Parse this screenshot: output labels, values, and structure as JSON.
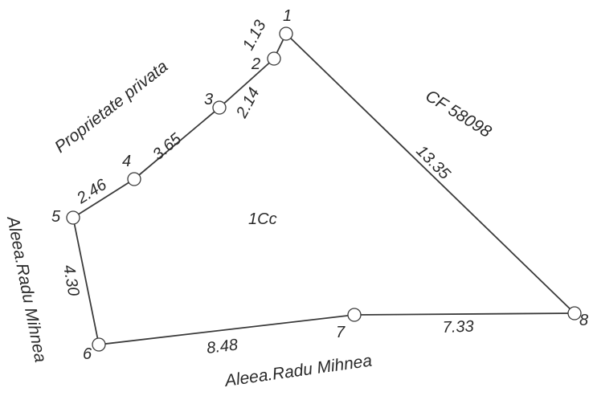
{
  "parcel": {
    "label": "1Cc",
    "points": [
      {
        "id": "1",
        "label": "1"
      },
      {
        "id": "2",
        "label": "2"
      },
      {
        "id": "3",
        "label": "3"
      },
      {
        "id": "4",
        "label": "4"
      },
      {
        "id": "5",
        "label": "5"
      },
      {
        "id": "6",
        "label": "6"
      },
      {
        "id": "7",
        "label": "7"
      },
      {
        "id": "8",
        "label": "8"
      }
    ],
    "segments": [
      {
        "from": "1",
        "to": "2",
        "length": "1.13"
      },
      {
        "from": "2",
        "to": "3",
        "length": "2.14"
      },
      {
        "from": "3",
        "to": "4",
        "length": "3.65"
      },
      {
        "from": "4",
        "to": "5",
        "length": "2.46"
      },
      {
        "from": "5",
        "to": "6",
        "length": "4.30"
      },
      {
        "from": "6",
        "to": "7",
        "length": "8.48"
      },
      {
        "from": "7",
        "to": "8",
        "length": "7.33"
      },
      {
        "from": "8",
        "to": "1",
        "length": "13.35"
      }
    ]
  },
  "neighbors": {
    "north": "Proprietate privata",
    "east": "CF 58098",
    "west": "Aleea.Radu Mihnea",
    "south": "Aleea.Radu Mihnea"
  },
  "colors": {
    "line": "#3a3a3a",
    "text": "#2a2a2a",
    "background": "#ffffff"
  }
}
